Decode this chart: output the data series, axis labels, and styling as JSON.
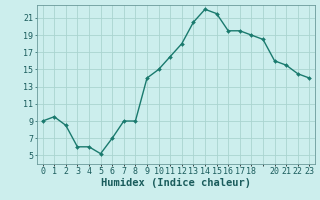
{
  "x": [
    0,
    1,
    2,
    3,
    4,
    5,
    6,
    7,
    8,
    9,
    10,
    11,
    12,
    13,
    14,
    15,
    16,
    17,
    18,
    19,
    20,
    21,
    22,
    23
  ],
  "y": [
    9,
    9.5,
    8.5,
    6,
    6,
    5.2,
    7,
    9,
    9,
    14,
    15,
    16.5,
    18,
    20.5,
    22,
    21.5,
    19.5,
    19.5,
    19,
    18.5,
    16,
    15.5,
    14.5,
    14
  ],
  "line_color": "#1a7a6e",
  "marker": "D",
  "marker_size": 2.0,
  "bg_color": "#cceeed",
  "grid_color": "#aad4d0",
  "xlabel": "Humidex (Indice chaleur)",
  "xlabel_fontsize": 7.5,
  "xlim": [
    -0.5,
    23.5
  ],
  "ylim": [
    4,
    22.5
  ],
  "yticks": [
    5,
    7,
    9,
    11,
    13,
    15,
    17,
    19,
    21
  ],
  "xtick_labels": [
    "0",
    "1",
    "2",
    "3",
    "4",
    "5",
    "6",
    "7",
    "8",
    "9",
    "10",
    "11",
    "12",
    "13",
    "14",
    "15",
    "16",
    "17",
    "18",
    "",
    "20",
    "21",
    "22",
    "23"
  ],
  "tick_color": "#1a5c5c",
  "tick_fontsize": 6.0,
  "line_width": 1.0,
  "spine_color": "#6a9a9a"
}
